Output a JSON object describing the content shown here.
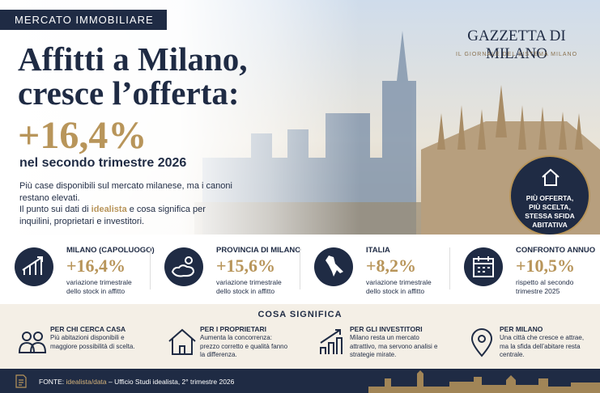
{
  "header": {
    "tag": "MERCATO IMMOBILIARE",
    "title_line1": "Affitti a Milano,",
    "title_line2": "cresce l’offerta:",
    "headline_value": "+16,4%",
    "subtitle": "nel secondo trimestre 2026",
    "intro_line1": "Più case disponibili sul mercato milanese, ma i canoni restano elevati.",
    "intro_line2_before": "Il punto sui dati di ",
    "intro_highlight": "idealista",
    "intro_line2_after": " e cosa significa per inquilini, proprietari e investitori."
  },
  "brand": {
    "name": "GAZZETTA DI MILANO",
    "tagline": "IL GIORNALE DEL SISTEMA MILANO"
  },
  "badge": {
    "text": "PIÙ OFFERTA, PIÙ SCELTA, STESSA SFIDA ABITATIVA"
  },
  "stats": [
    {
      "label": "MILANO (CAPOLUOGO)",
      "value": "+16,4%",
      "description": "variazione trimestrale dello stock in affitto"
    },
    {
      "label": "PROVINCIA DI MILANO",
      "value": "+15,6%",
      "description": "variazione trimestrale dello stock in affitto"
    },
    {
      "label": "ITALIA",
      "value": "+8,2%",
      "description": "variazione trimestrale dello stock in affitto"
    },
    {
      "label": "CONFRONTO ANNUO",
      "value": "+10,5%",
      "description": "rispetto al secondo trimestre 2025"
    }
  ],
  "meaning": {
    "heading": "COSA SIGNIFICA",
    "items": [
      {
        "title": "PER CHI CERCA CASA",
        "text": "Più abitazioni disponibili e maggiore possibilità di scelta."
      },
      {
        "title": "PER I PROPRIETARI",
        "text": "Aumenta la concorrenza: prezzo corretto e qualità fanno la differenza."
      },
      {
        "title": "PER GLI INVESTITORI",
        "text": "Milano resta un mercato attrattivo, ma servono analisi e strategie mirate."
      },
      {
        "title": "PER MILANO",
        "text": "Una città che cresce e attrae, ma la sfida dell’abitare resta centrale."
      }
    ]
  },
  "footer": {
    "label": "FONTE:",
    "source": "idealista/data",
    "rest": " – Ufficio Studi idealista, 2° trimestre 2026"
  }
}
